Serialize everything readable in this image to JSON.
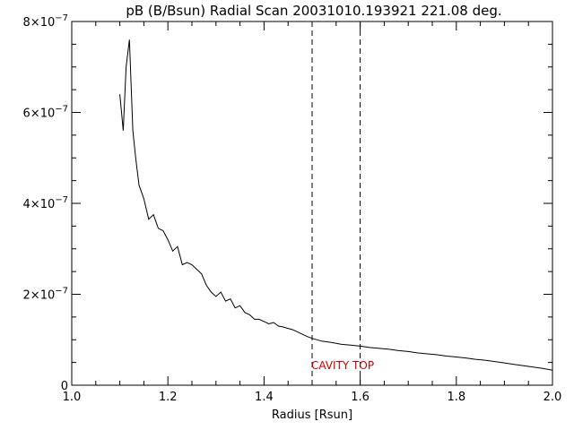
{
  "chart_data": {
    "type": "line",
    "title": "pB (B/Bsun) Radial Scan 20031010.193921 221.08 deg.",
    "xlabel": "Radius [Rsun]",
    "ylabel": "",
    "xlim": [
      1.0,
      2.0
    ],
    "ylim": [
      0,
      8e-07
    ],
    "x_ticks": [
      1.0,
      1.2,
      1.4,
      1.6,
      1.8,
      2.0
    ],
    "x_tick_labels": [
      "1.0",
      "1.2",
      "1.4",
      "1.6",
      "1.8",
      "2.0"
    ],
    "y_ticks": [
      0,
      2e-07,
      4e-07,
      6e-07,
      8e-07
    ],
    "y_tick_labels": [
      {
        "mantissa": "0",
        "exponent": ""
      },
      {
        "mantissa": "2×10",
        "exponent": "−7"
      },
      {
        "mantissa": "4×10",
        "exponent": "−7"
      },
      {
        "mantissa": "6×10",
        "exponent": "−7"
      },
      {
        "mantissa": "8×10",
        "exponent": "−7"
      }
    ],
    "grid": false,
    "series": [
      {
        "x": [
          1.1,
          1.107,
          1.113,
          1.12,
          1.127,
          1.133,
          1.14,
          1.15,
          1.16,
          1.17,
          1.18,
          1.19,
          1.2,
          1.21,
          1.22,
          1.23,
          1.24,
          1.25,
          1.26,
          1.27,
          1.28,
          1.29,
          1.3,
          1.31,
          1.32,
          1.33,
          1.34,
          1.35,
          1.36,
          1.37,
          1.38,
          1.39,
          1.4,
          1.41,
          1.42,
          1.43,
          1.44,
          1.45,
          1.46,
          1.47,
          1.48,
          1.49,
          1.5,
          1.52,
          1.54,
          1.56,
          1.58,
          1.6,
          1.62,
          1.64,
          1.66,
          1.68,
          1.7,
          1.72,
          1.74,
          1.76,
          1.78,
          1.8,
          1.82,
          1.84,
          1.86,
          1.88,
          1.9,
          1.92,
          1.94,
          1.96,
          1.98,
          2.0
        ],
        "y": [
          6.4e-07,
          5.6e-07,
          7e-07,
          7.6e-07,
          5.6e-07,
          5e-07,
          4.4e-07,
          4.1e-07,
          3.65e-07,
          3.75e-07,
          3.45e-07,
          3.4e-07,
          3.2e-07,
          2.95e-07,
          3.05e-07,
          2.65e-07,
          2.7e-07,
          2.65e-07,
          2.55e-07,
          2.45e-07,
          2.2e-07,
          2.05e-07,
          1.95e-07,
          2.05e-07,
          1.85e-07,
          1.9e-07,
          1.7e-07,
          1.75e-07,
          1.6e-07,
          1.55e-07,
          1.45e-07,
          1.45e-07,
          1.4e-07,
          1.35e-07,
          1.38e-07,
          1.3e-07,
          1.28e-07,
          1.25e-07,
          1.22e-07,
          1.17e-07,
          1.12e-07,
          1.07e-07,
          1.03e-07,
          9.7e-08,
          9.4e-08,
          9e-08,
          8.8e-08,
          8.6e-08,
          8.3e-08,
          8.1e-08,
          7.9e-08,
          7.6e-08,
          7.4e-08,
          7.1e-08,
          6.9e-08,
          6.7e-08,
          6.4e-08,
          6.2e-08,
          6e-08,
          5.7e-08,
          5.5e-08,
          5.2e-08,
          4.9e-08,
          4.6e-08,
          4.3e-08,
          4e-08,
          3.7e-08,
          3.3e-08
        ],
        "color": "#000000"
      }
    ],
    "vlines": [
      {
        "x": 1.5,
        "style": "dashed",
        "color": "#000000"
      },
      {
        "x": 1.6,
        "style": "dashed",
        "color": "#000000"
      }
    ],
    "annotations": [
      {
        "text": "CAVITY TOP",
        "x": 1.5,
        "color": "#cc0000"
      }
    ]
  }
}
